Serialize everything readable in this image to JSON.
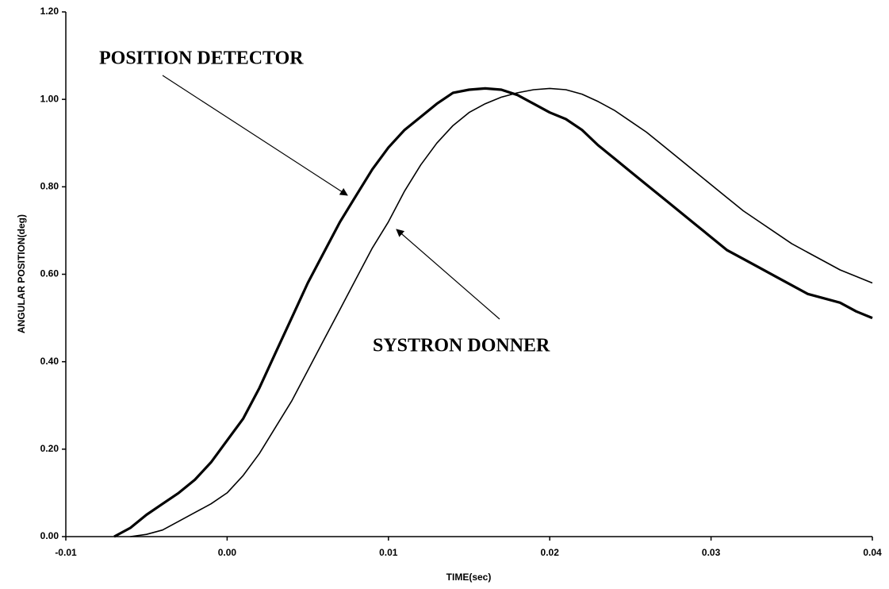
{
  "chart_data": {
    "type": "line",
    "x_label": "TIME(sec)",
    "y_label": "ANGULAR POSITION(deg)",
    "annotations": [
      "POSITION DETECTOR",
      "SYSTRON DONNER"
    ],
    "x": [
      -0.007,
      -0.006,
      -0.005,
      -0.004,
      -0.003,
      -0.002,
      -0.001,
      0,
      0.001,
      0.002,
      0.003,
      0.004,
      0.005,
      0.006,
      0.007,
      0.008,
      0.009,
      0.01,
      0.011,
      0.012,
      0.013,
      0.014,
      0.015,
      0.016,
      0.017,
      0.018,
      0.019,
      0.02,
      0.021,
      0.022,
      0.023,
      0.024,
      0.025,
      0.026,
      0.027,
      0.028,
      0.029,
      0.03,
      0.031,
      0.032,
      0.033,
      0.034,
      0.035,
      0.036,
      0.037,
      0.038,
      0.039,
      0.04
    ],
    "series": [
      {
        "name": "POSITION DETECTOR",
        "color": "#000000",
        "width": 3.2,
        "values": [
          0,
          0.02,
          0.05,
          0.075,
          0.1,
          0.13,
          0.17,
          0.22,
          0.27,
          0.34,
          0.42,
          0.5,
          0.58,
          0.65,
          0.72,
          0.78,
          0.84,
          0.89,
          0.93,
          0.96,
          0.99,
          1.015,
          1.022,
          1.025,
          1.022,
          1.01,
          0.99,
          0.97,
          0.955,
          0.93,
          0.895,
          0.865,
          0.835,
          0.805,
          0.775,
          0.745,
          0.715,
          0.685,
          0.655,
          0.635,
          0.615,
          0.595,
          0.575,
          0.555,
          0.545,
          0.535,
          0.515,
          0.5
        ]
      },
      {
        "name": "SYSTRON DONNER",
        "color": "#000000",
        "width": 1.6,
        "values": [
          null,
          0,
          0.005,
          0.015,
          0.035,
          0.055,
          0.075,
          0.1,
          0.14,
          0.19,
          0.25,
          0.31,
          0.38,
          0.45,
          0.52,
          0.59,
          0.66,
          0.72,
          0.79,
          0.85,
          0.9,
          0.94,
          0.97,
          0.99,
          1.005,
          1.015,
          1.022,
          1.025,
          1.022,
          1.012,
          0.995,
          0.975,
          0.95,
          0.925,
          0.895,
          0.865,
          0.835,
          0.805,
          0.775,
          0.745,
          0.72,
          0.695,
          0.67,
          0.65,
          0.63,
          0.61,
          0.595,
          0.58
        ]
      }
    ],
    "xlim": [
      -0.01,
      0.04
    ],
    "xticks": [
      -0.01,
      {
        "value": 0,
        "label": "0.00"
      },
      0.01,
      0.02,
      0.03,
      0.04
    ],
    "ylim": [
      0,
      1.2
    ],
    "yticks": [
      {
        "value": 0,
        "label": "0.00"
      },
      {
        "value": 0.2,
        "label": "0.20"
      },
      {
        "value": 0.4,
        "label": "0.40"
      },
      {
        "value": 0.6,
        "label": "0.60"
      },
      {
        "value": 0.8,
        "label": "0.80"
      },
      {
        "value": 1,
        "label": "1.00"
      },
      {
        "value": 1.2,
        "label": "1.20"
      }
    ],
    "grid": false
  }
}
